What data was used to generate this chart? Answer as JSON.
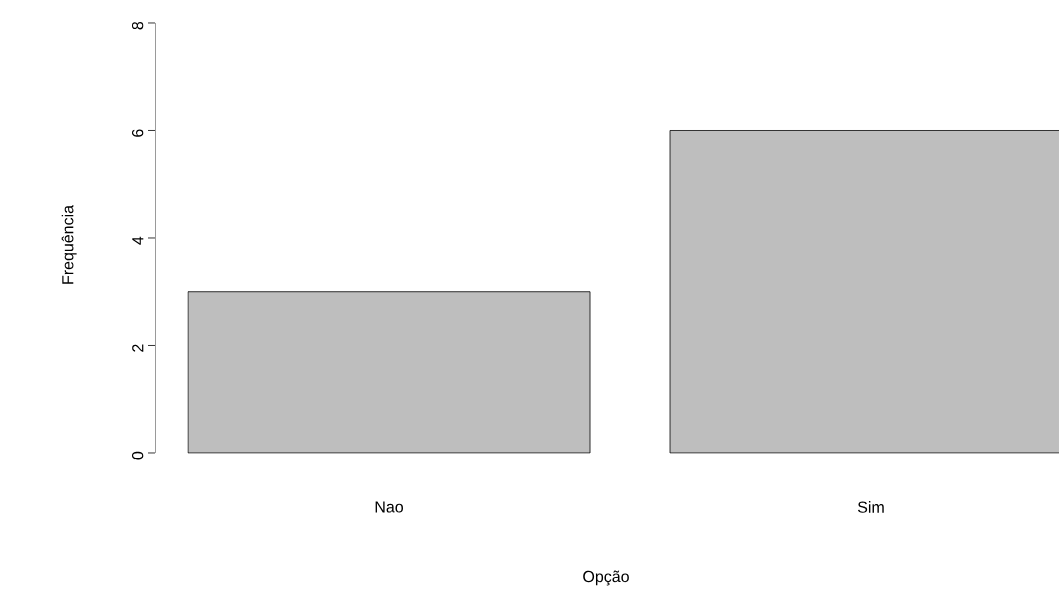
{
  "chart_data": {
    "type": "bar",
    "xlabel": "Opção",
    "ylabel": "Frequência",
    "categories": [
      "Nao",
      "Sim"
    ],
    "values": [
      3,
      6
    ],
    "color": "#bebebe",
    "ylim": [
      0,
      8
    ],
    "yticks": [
      0,
      2,
      4,
      6,
      8
    ]
  }
}
